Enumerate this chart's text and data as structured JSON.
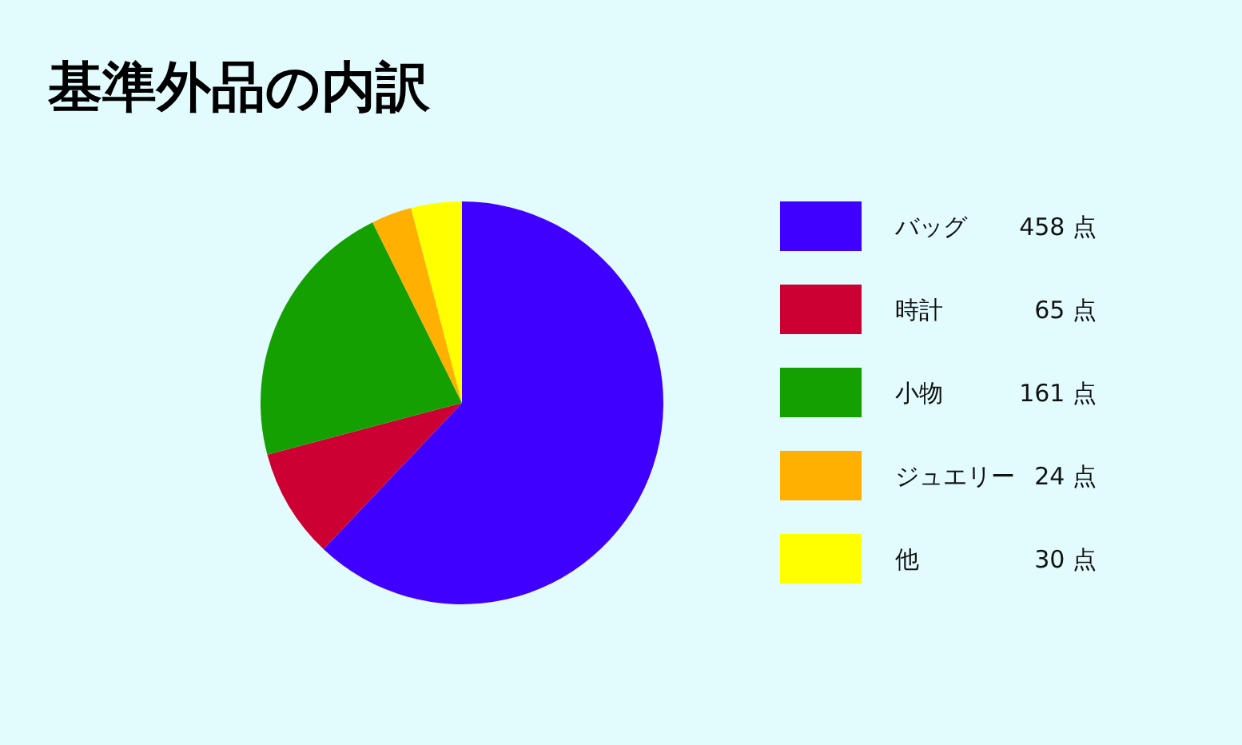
{
  "chart_data": {
    "type": "pie",
    "title": "基準外品の内訳",
    "categories": [
      "バッグ",
      "時計",
      "小物",
      "ジュエリー",
      "他"
    ],
    "values": [
      458,
      65,
      161,
      24,
      30
    ],
    "colors": [
      "#4000ff",
      "#cc0033",
      "#14a000",
      "#ffb000",
      "#ffff00"
    ],
    "value_labels": [
      "458 点",
      "65 点",
      "161 点",
      "24 点",
      "30 点"
    ],
    "legend": "right"
  }
}
